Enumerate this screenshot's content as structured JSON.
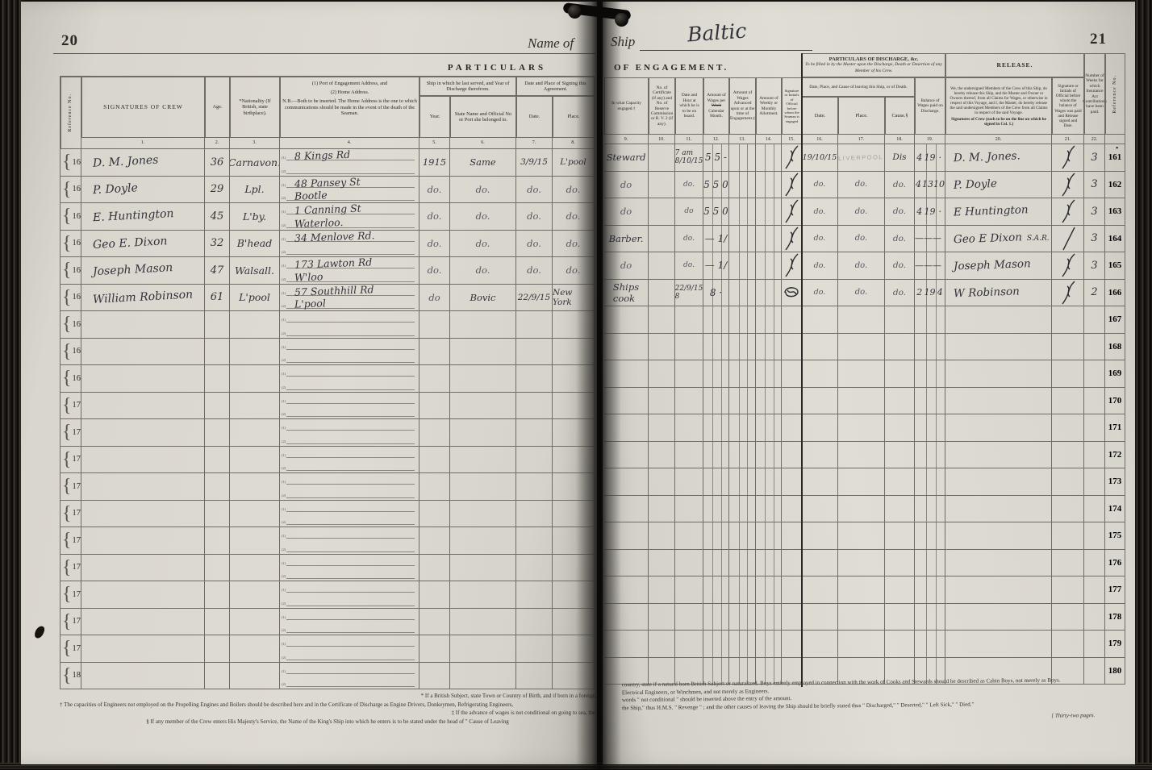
{
  "colors": {
    "page": "#dedbd3",
    "ink": "#34323b",
    "print": "#2b2a26",
    "stamp": "#a4a299"
  },
  "left_page": {
    "page_number": "20",
    "name_of_label": "Name of",
    "section_title": "PARTICULARS",
    "brace": "{",
    "tag1": "(1)",
    "tag2": "(2)",
    "table": {
      "ref_header": "Reference No.",
      "col_signatures": "SIGNATURES  OF  CREW",
      "col_age": "Age.",
      "col_nationality": "*Nationality (If British, state birthplace).",
      "addr_title1": "(1) Port of Engagement Address, and",
      "addr_title2": "(2) Home Address.",
      "addr_note": "N.B.—Both to be inserted.  The Home Address is the one to which communications should be made in the event of the death of the Seaman.",
      "group_last_ship": "Ship in which he last served, and Year of Discharge therefrom.",
      "col_year": "Year.",
      "col_state_name": "State Name and Official No or Port she belonged to.",
      "group_signing": "Date and Place of Signing this Agreement.",
      "col_date": "Date.",
      "col_place": "Place.",
      "numbers": [
        "1.",
        "2.",
        "3.",
        "4.",
        "5.",
        "6.",
        "7.",
        "8."
      ]
    },
    "rows": [
      {
        "ref": "161",
        "name": "D. M. Jones",
        "age": "36",
        "nat": "Carnavon.",
        "addr1": "8  Kings Rd",
        "addr2": "",
        "year": "1915",
        "ship": "Same",
        "date": "3/9/15",
        "place": "L'pool"
      },
      {
        "ref": "162",
        "name": "P. Doyle",
        "age": "29",
        "nat": "Lpl.",
        "addr1": "48 Pansey St",
        "addr2": "Bootle",
        "year": "do.",
        "ship": "do.",
        "date": "do.",
        "place": "do."
      },
      {
        "ref": "163",
        "name": "E. Huntington",
        "age": "45",
        "nat": "L'by.",
        "addr1": "1 Canning St",
        "addr2": "Waterloo.",
        "year": "do.",
        "ship": "do.",
        "date": "do.",
        "place": "do."
      },
      {
        "ref": "164",
        "name": "Geo E. Dixon",
        "age": "32",
        "nat": "B'head",
        "addr1": "34 Menlove Rd.",
        "addr2": "",
        "year": "do.",
        "ship": "do.",
        "date": "do.",
        "place": "do."
      },
      {
        "ref": "165",
        "name": "Joseph Mason",
        "age": "47",
        "nat": "Walsall.",
        "addr1": "173 Lawton Rd",
        "addr2": "W'loo",
        "year": "do.",
        "ship": "do.",
        "date": "do.",
        "place": "do."
      },
      {
        "ref": "166",
        "name": "William Robinson",
        "age": "61",
        "nat": "L'pool",
        "addr1": "57 Southhill Rd",
        "addr2": "L'pool",
        "year": "do",
        "ship": "Bovic",
        "date": "22/9/15",
        "place": "New York"
      },
      {
        "ref": "167"
      },
      {
        "ref": "168"
      },
      {
        "ref": "169"
      },
      {
        "ref": "170"
      },
      {
        "ref": "171"
      },
      {
        "ref": "172"
      },
      {
        "ref": "173"
      },
      {
        "ref": "174"
      },
      {
        "ref": "175"
      },
      {
        "ref": "176"
      },
      {
        "ref": "177"
      },
      {
        "ref": "178"
      },
      {
        "ref": "179"
      },
      {
        "ref": "180"
      }
    ],
    "footnotes": [
      "* If a British Subject, state Town or Country of Birth, and if born in a foreign",
      "† The capacities of Engineers not employed on the Propelling Engines and Boilers should be described here and in the Certificate of Discharge as Engine Drivers, Donkeymen, Refrigerating Engineers,",
      "‡ If the advance of wages is not conditional on going to sea, the",
      "§ If any member of the Crew enters His Majesty's Service, the Name of the King's Ship into which he enters is to be stated under the head of \" Cause of Leaving"
    ]
  },
  "right_page": {
    "page_number": "21",
    "ship_label": "Ship",
    "ship_name": "Baltic",
    "section_title": "OF  ENGAGEMENT.",
    "ref_dot": "•",
    "table": {
      "discharge_box_title": "PARTICULARS  OF  DISCHARGE,  &c.",
      "discharge_box_note": "To be filled in by the Master upon the Discharge, Death or Desertion of any Member of his Crew.",
      "release_title": "RELEASE.",
      "col_capacity": "In what Capacity engaged.†",
      "col_certificate": "No. of Certificate (if any) and No. of Reserve Commission or R. V. 2 (if any).",
      "col_date_hour": "Date and Hour at which he is to be on board.",
      "wages_pre": "Amount of Wages per ",
      "wages_struck": "Week",
      "wages_post": " Calendar Month.",
      "col_advanced": "Amount of Wages Advanced upon or at the time of Engagement.‡",
      "col_allotment": "Amount of Weekly or Monthly Allotment.",
      "col_official15": "Signature or Initials of Official before whom the Seaman is engaged",
      "group_leaving": "Date, Place, and Cause of leaving this Ship, or of Death.",
      "col_date": "Date.",
      "col_place": "Place.",
      "col_cause": "Cause.§",
      "col_balance": "Balance of Wages paid on Discharge.",
      "release_para": "We, the undersigned Members of the Crew of this Ship, do hereby release this Ship, and the Master and Owner or Owners thereof, from all Claims for Wages, or otherwise in respect of this Voyage, and I, the Master, do hereby release the said undersigned Members of the Crew from all Claims in respect of the said Voyage.",
      "release_sub": "Signatures of Crew (each to be on the line on which he signed in Col. 1.)",
      "col_official21": "Signature or Initials of Official before whom the balance of Wages was paid and Release signed and Date.",
      "col_weeks": "Number of Weeks for which Insurance Act Contributions have been paid.",
      "ref_header": "Reference No.",
      "numbers": [
        "9.",
        "10.",
        "11.",
        "12.",
        "13.",
        "14.",
        "15.",
        "16.",
        "17.",
        "18.",
        "19.",
        "20.",
        "21.",
        "22."
      ]
    },
    "rows": [
      {
        "ref": "161",
        "cap": "Steward",
        "cert": "",
        "dh": "7 am\n8/10/15",
        "wages": "5 5 -",
        "adv": "",
        "allot": "",
        "mark": "squiggle",
        "ddate": "19/10/15",
        "dplace": "LIVERPOOL",
        "stamp": true,
        "cause": "Dis",
        "bal": [
          "4",
          "19",
          "·"
        ],
        "rel": "D. M. Jones.",
        "relmark": "squiggle",
        "weeks": "3"
      },
      {
        "ref": "162",
        "cap": "do",
        "cert": "",
        "dh": "do.",
        "wages": "5 5 0",
        "adv": "",
        "allot": "",
        "mark": "squiggle",
        "ddate": "do.",
        "dplace": "do.",
        "cause": "do.",
        "bal": [
          "4",
          "13",
          "10"
        ],
        "rel": "P. Doyle",
        "relmark": "squiggle",
        "weeks": "3"
      },
      {
        "ref": "163",
        "cap": "do",
        "cert": "",
        "dh": "do",
        "wages": "5 5 0",
        "adv": "",
        "allot": "",
        "mark": "squiggle",
        "ddate": "do.",
        "dplace": "do.",
        "cause": "do.",
        "bal": [
          "4",
          "19",
          "·"
        ],
        "rel": "E Huntington",
        "relmark": "squiggle",
        "weeks": "3"
      },
      {
        "ref": "164",
        "cap": "Barber.",
        "cert": "",
        "dh": "do.",
        "wages": "— 1/",
        "adv": "",
        "allot": "",
        "mark": "squiggle",
        "ddate": "do.",
        "dplace": "do.",
        "cause": "do.",
        "bal": [
          "———",
          "",
          ""
        ],
        "rel": "Geo E Dixon",
        "sar": "S.A.R.",
        "relmark": "slash",
        "weeks": "3"
      },
      {
        "ref": "165",
        "cap": "do",
        "cert": "",
        "dh": "do.",
        "wages": "— 1/",
        "adv": "",
        "allot": "",
        "mark": "squiggle",
        "ddate": "do.",
        "dplace": "do.",
        "cause": "do.",
        "bal": [
          "———",
          "",
          ""
        ],
        "rel": "Joseph Mason",
        "relmark": "squiggle",
        "weeks": "3"
      },
      {
        "ref": "166",
        "cap": "Ships\ncook",
        "cert": "",
        "dh": "22/9/15\n8",
        "wages": "8 ·",
        "adv": "",
        "allot": "",
        "mark": "circle",
        "ddate": "do.",
        "dplace": "do.",
        "cause": "do.",
        "bal": [
          "2",
          "19",
          "4"
        ],
        "rel": "W Robinson",
        "relmark": "squiggle",
        "weeks": "2"
      },
      {
        "ref": "167"
      },
      {
        "ref": "168"
      },
      {
        "ref": "169"
      },
      {
        "ref": "170"
      },
      {
        "ref": "171"
      },
      {
        "ref": "172"
      },
      {
        "ref": "173"
      },
      {
        "ref": "174"
      },
      {
        "ref": "175"
      },
      {
        "ref": "176"
      },
      {
        "ref": "177"
      },
      {
        "ref": "178"
      },
      {
        "ref": "179"
      },
      {
        "ref": "180"
      }
    ],
    "footnotes": [
      "country, state if a natural born British Subject or naturalized.        Boys entirely employed in connection with the work of Cooks and Stewards should be described as Cabin Boys, not merely as Boys.",
      "Electrical Engineers, or Winchmen, and not merely as Engineers.",
      "words \" not conditional \" should be inserted above the entry of the amount.",
      "the Ship,\" thus H.M.S. \" Revenge \" ; and the other causes of leaving the Ship should be briefly stated thus \" Discharged,\" \" Deserted,\" \" Left Sick,\" \" Died.\"",
      "[ Thirty-two pages."
    ]
  }
}
